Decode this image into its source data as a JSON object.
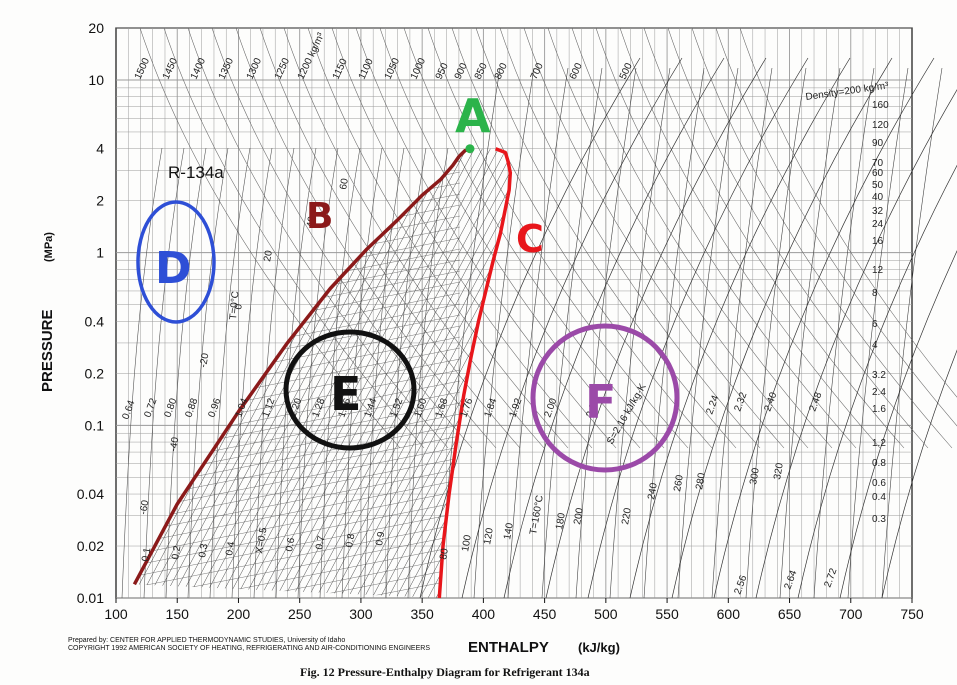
{
  "chart_data": {
    "type": "line",
    "title": "R-134a",
    "xlabel": "ENTHALPY",
    "xunit": "(kJ/kg)",
    "ylabel": "PRESSURE",
    "yunit": "(MPa)",
    "xlim": [
      100,
      750
    ],
    "ylim": [
      0.01,
      20
    ],
    "yscale": "log",
    "grid": true,
    "x_ticks": [
      "100",
      "150",
      "200",
      "250",
      "300",
      "350",
      "400",
      "450",
      "500",
      "550",
      "600",
      "650",
      "700",
      "750"
    ],
    "y_ticks": [
      {
        "v": 20,
        "label": "20"
      },
      {
        "v": 10,
        "label": "10"
      },
      {
        "v": 4,
        "label": "4"
      },
      {
        "v": 2,
        "label": "2"
      },
      {
        "v": 1,
        "label": "1"
      },
      {
        "v": 0.4,
        "label": "0.4"
      },
      {
        "v": 0.2,
        "label": "0.2"
      },
      {
        "v": 0.1,
        "label": "0.1"
      },
      {
        "v": 0.04,
        "label": "0.04"
      },
      {
        "v": 0.02,
        "label": "0.02"
      },
      {
        "v": 0.01,
        "label": "0.01"
      }
    ],
    "series": [
      {
        "name": "Saturated liquid",
        "color": "#8b1a1a",
        "x": [
          115,
          150,
          200,
          240,
          275,
          305,
          330,
          350,
          365,
          375,
          380,
          385,
          389
        ],
        "y": [
          0.012,
          0.035,
          0.12,
          0.3,
          0.62,
          1.05,
          1.55,
          2.15,
          2.65,
          3.2,
          3.6,
          3.9,
          4.0
        ]
      },
      {
        "name": "Saturated vapour",
        "color": "#e8161b",
        "x": [
          364,
          367,
          372,
          378,
          384,
          390,
          396,
          402,
          408,
          414,
          418,
          421,
          422,
          420,
          418,
          410
        ],
        "y": [
          0.01,
          0.02,
          0.04,
          0.08,
          0.15,
          0.25,
          0.4,
          0.6,
          0.9,
          1.3,
          1.8,
          2.3,
          2.9,
          3.4,
          3.8,
          4.0
        ]
      }
    ],
    "critical_point": {
      "x": 389,
      "y": 4.0
    },
    "density_lines": {
      "label": "Density=200 kg/m³",
      "values": [
        "1500",
        "1450",
        "1400",
        "1350",
        "1300",
        "1250",
        "1200 kg/m³",
        "1150",
        "1100",
        "1050",
        "1000",
        "950",
        "900",
        "850",
        "800",
        "700",
        "600",
        "500",
        "400",
        "300",
        "160",
        "120",
        "90",
        "70",
        "60",
        "50",
        "40",
        "32",
        "24",
        "16",
        "12",
        "8",
        "6",
        "4",
        "3.2",
        "2.4",
        "1.6",
        "1.2",
        "0.8",
        "0.6",
        "0.4",
        "0.3"
      ]
    },
    "entropy_lines": {
      "label": "S=2.16 kJ/kg·K",
      "values": [
        "0.64",
        "0.72",
        "0.80",
        "0.88",
        "0.96",
        "1.04",
        "1.12",
        "1.20",
        "1.28",
        "1.36",
        "1.44",
        "1.52",
        "1.60",
        "1.68",
        "1.76",
        "1.84",
        "1.92",
        "2.00",
        "2.08",
        "2.24",
        "2.32",
        "2.40",
        "2.48",
        "2.56",
        "2.64",
        "2.72"
      ]
    },
    "temperature_lines": {
      "label": "T=0°C",
      "values": [
        "-60",
        "-40",
        "-20",
        "0",
        "20",
        "40",
        "60",
        "80",
        "100",
        "120",
        "140",
        "T=160°C",
        "180",
        "200",
        "220",
        "240",
        "260",
        "280",
        "300",
        "320"
      ]
    },
    "quality_lines": {
      "values": [
        "0.1",
        "0.2",
        "0.3",
        "0.4",
        "X=0.5",
        "0.6",
        "0.7",
        "0.8",
        "0.9"
      ]
    },
    "annotations": [
      {
        "label": "A",
        "color": "#2bb34a"
      },
      {
        "label": "B",
        "color": "#8b1a1a"
      },
      {
        "label": "C",
        "color": "#e8161b"
      },
      {
        "label": "D",
        "color": "#2e4fd6"
      },
      {
        "label": "E",
        "color": "#111111"
      },
      {
        "label": "F",
        "color": "#9b4aa8"
      }
    ]
  },
  "footer": {
    "line1": "Prepared by:  CENTER FOR APPLIED THERMODYNAMIC STUDIES, University of Idaho",
    "line2": "COPYRIGHT 1992 AMERICAN SOCIETY OF HEATING, REFRIGERATING AND AIR-CONDITIONING ENGINEERS",
    "caption": "Fig. 12    Pressure-Enthalpy Diagram for Refrigerant 134a"
  },
  "colors": {
    "ink": "#111111",
    "grid": "#9a9a9a",
    "liquid": "#8b1a1a",
    "vapour": "#e8161b"
  }
}
